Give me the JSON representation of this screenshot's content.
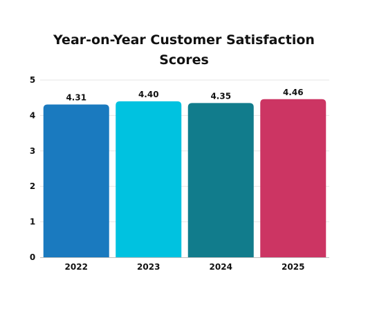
{
  "chart_data": {
    "type": "bar",
    "title": "Year-on-Year Customer Satisfaction Scores",
    "categories": [
      "2022",
      "2023",
      "2024",
      "2025"
    ],
    "values": [
      4.31,
      4.4,
      4.35,
      4.46
    ],
    "value_labels": [
      "4.31",
      "4.40",
      "4.35",
      "4.46"
    ],
    "colors": [
      "#1a7abf",
      "#00c2e0",
      "#117c8c",
      "#cc3563"
    ],
    "ylim": [
      0,
      5
    ],
    "yticks": [
      0,
      1,
      2,
      3,
      4,
      5
    ],
    "xlabel": "",
    "ylabel": "",
    "grid": true,
    "legend": "none"
  }
}
